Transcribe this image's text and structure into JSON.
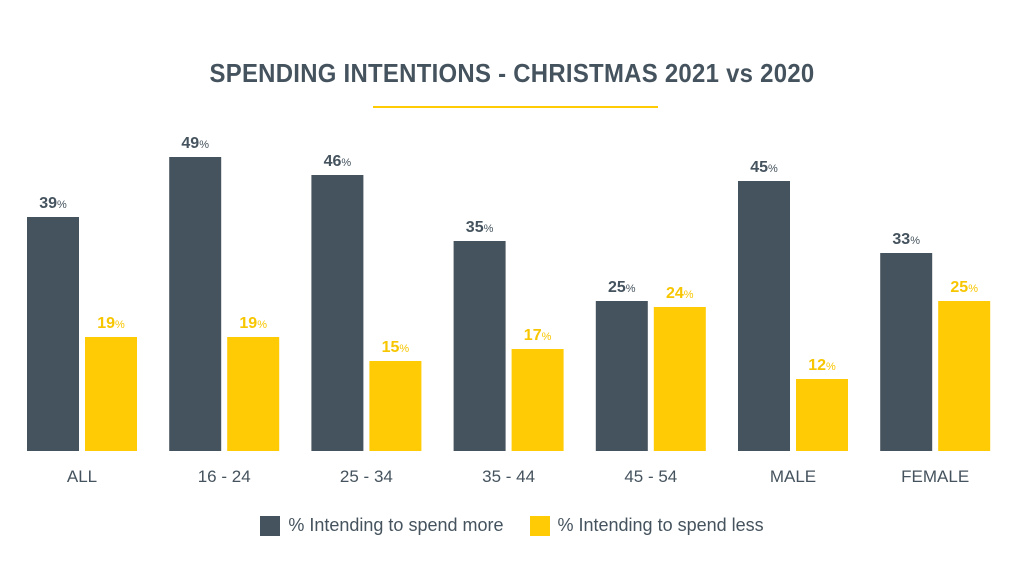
{
  "chart_data": {
    "type": "bar",
    "title": "SPENDING INTENTIONS - CHRISTMAS 2021 vs 2020",
    "xlabel": "",
    "ylabel": "",
    "ylim": [
      0,
      50
    ],
    "grid": false,
    "legend_position": "bottom-center",
    "value_suffix": "%",
    "categories": [
      "ALL",
      "16 - 24",
      "25 - 34",
      "35 - 44",
      "45 - 54",
      "MALE",
      "FEMALE"
    ],
    "series": [
      {
        "name": "% Intending to spend more",
        "color": "#45535e",
        "label_color": "#45535e",
        "values": [
          39,
          49,
          46,
          35,
          25,
          45,
          33
        ]
      },
      {
        "name": "% Intending to spend less",
        "color": "#ffcb05",
        "label_color": "#f7c600",
        "values": [
          19,
          19,
          15,
          17,
          24,
          12,
          25
        ]
      }
    ]
  },
  "colors": {
    "accent": "#ffcb05",
    "dark": "#45535e"
  }
}
